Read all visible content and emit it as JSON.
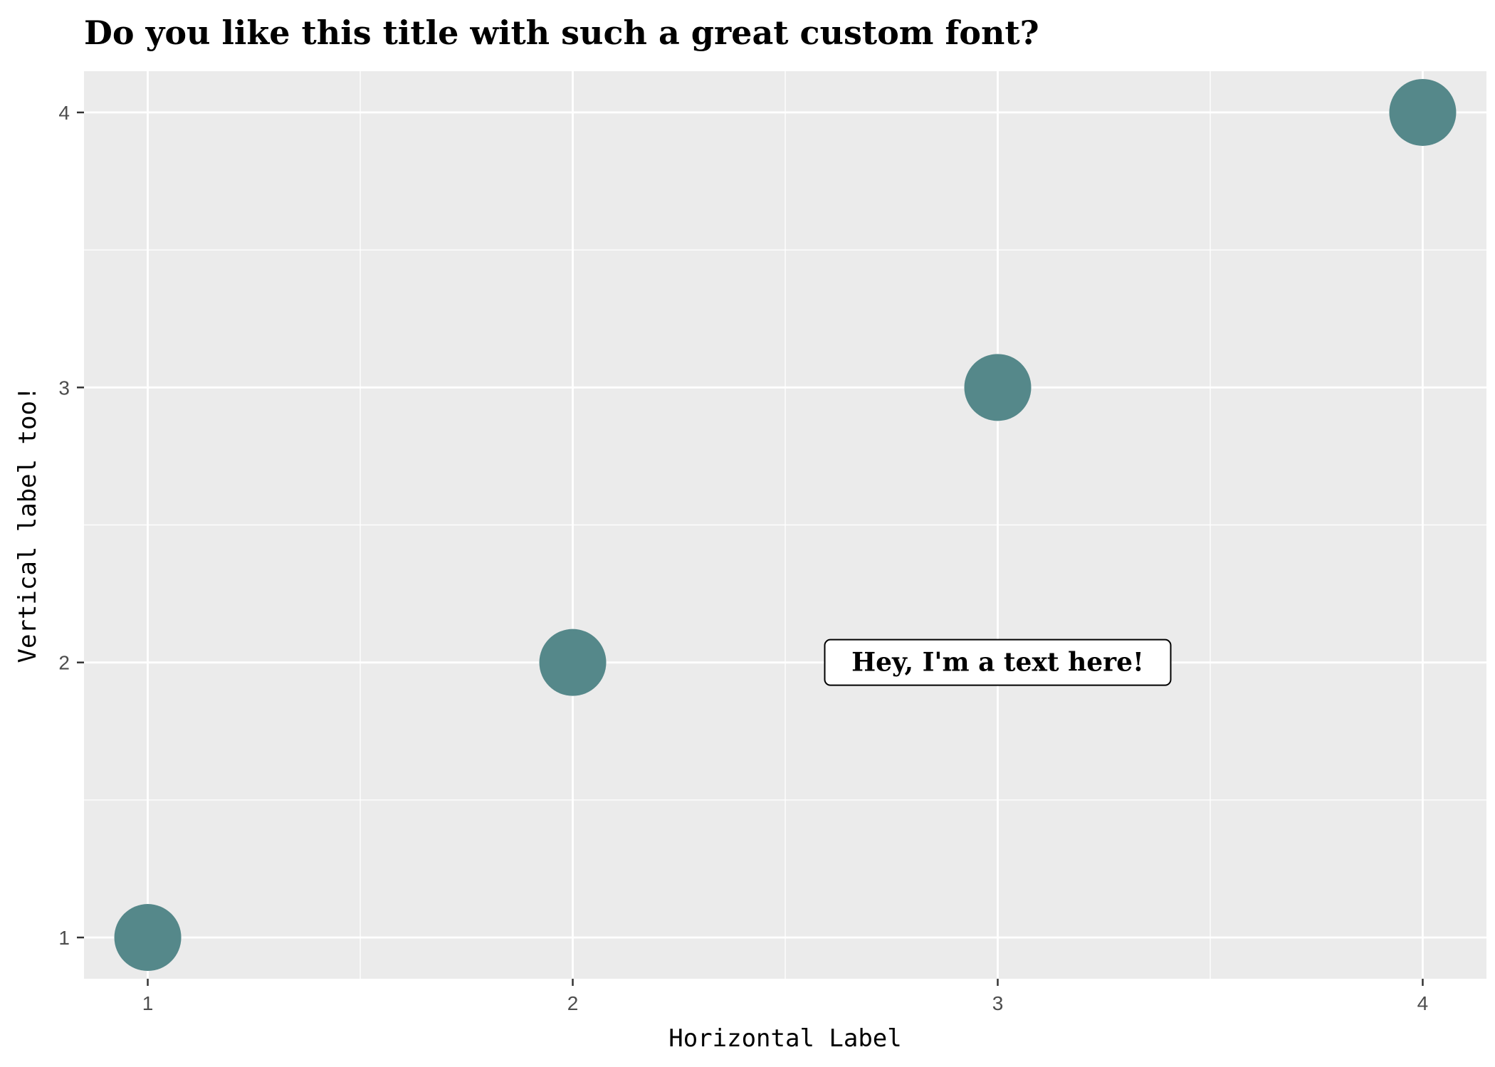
{
  "chart_data": {
    "type": "scatter",
    "title": "Do you like this title with such a great custom font?",
    "xlabel": "Horizontal Label",
    "ylabel": "Vertical label too!",
    "x": [
      1,
      2,
      3,
      4
    ],
    "y": [
      1,
      2,
      3,
      4
    ],
    "xlim": [
      0.85,
      4.15
    ],
    "ylim": [
      0.85,
      4.15
    ],
    "x_ticks": [
      1,
      2,
      3,
      4
    ],
    "y_ticks": [
      1,
      2,
      3,
      4
    ],
    "grid": true,
    "annotation": {
      "text": "Hey, I'm a text here!",
      "x": 3,
      "y": 2
    },
    "colors": {
      "point": "#55888a",
      "panel_background": "#ebebeb",
      "grid": "#ffffff",
      "tick_label": "#4d4d4d",
      "annotation_border": "#000000",
      "annotation_fill": "#ffffff"
    }
  }
}
